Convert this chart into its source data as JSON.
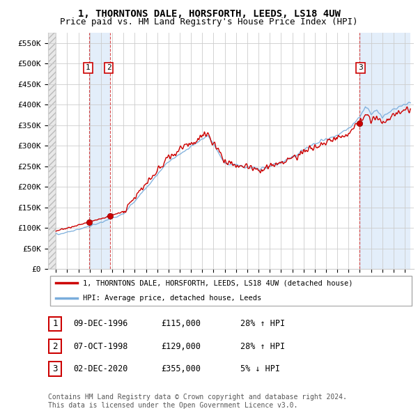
{
  "title": "1, THORNTONS DALE, HORSFORTH, LEEDS, LS18 4UW",
  "subtitle": "Price paid vs. HM Land Registry's House Price Index (HPI)",
  "ylim": [
    0,
    575000
  ],
  "yticks": [
    0,
    50000,
    100000,
    150000,
    200000,
    250000,
    300000,
    350000,
    400000,
    450000,
    500000,
    550000
  ],
  "ytick_labels": [
    "£0",
    "£50K",
    "£100K",
    "£150K",
    "£200K",
    "£250K",
    "£300K",
    "£350K",
    "£400K",
    "£450K",
    "£500K",
    "£550K"
  ],
  "sale_prices": [
    115000,
    129000,
    355000
  ],
  "sale_labels": [
    "1",
    "2",
    "3"
  ],
  "hpi_line_color": "#7aaddc",
  "price_line_color": "#cc0000",
  "sale_dot_color": "#cc0000",
  "vline_color": "#cc0000",
  "grid_color": "#cccccc",
  "legend_label_price": "1, THORNTONS DALE, HORSFORTH, LEEDS, LS18 4UW (detached house)",
  "legend_label_hpi": "HPI: Average price, detached house, Leeds",
  "table_rows": [
    {
      "num": "1",
      "date": "09-DEC-1996",
      "price": "£115,000",
      "hpi": "28% ↑ HPI"
    },
    {
      "num": "2",
      "date": "07-OCT-1998",
      "price": "£129,000",
      "hpi": "28% ↑ HPI"
    },
    {
      "num": "3",
      "date": "02-DEC-2020",
      "price": "£355,000",
      "hpi": "5% ↓ HPI"
    }
  ],
  "footer": "Contains HM Land Registry data © Crown copyright and database right 2024.\nThis data is licensed under the Open Government Licence v3.0."
}
